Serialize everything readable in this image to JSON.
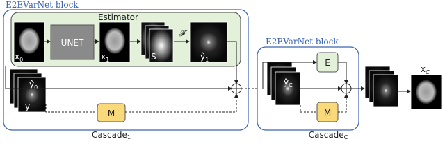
{
  "block1": {
    "title": "E2EVarNet block",
    "estimator_title": "Estimator",
    "unet": "UNET",
    "x0": {
      "base": "x",
      "sub": "0"
    },
    "x1": {
      "base": "x",
      "sub": "1"
    },
    "s": "S",
    "fourier": "𝓕",
    "y1_hat": {
      "base": "ŷ",
      "sub": "1"
    },
    "y0_hat": {
      "base": "ŷ",
      "sub": "0"
    },
    "y": "y",
    "m": "M",
    "cascade": {
      "base": "Cascade",
      "sub": "1"
    }
  },
  "block2": {
    "title": "E2EVarNet block",
    "e": "E",
    "yc_hat": {
      "base": "ŷ",
      "sub": "C"
    },
    "m": "M",
    "cascade": {
      "base": "Cascade",
      "sub": "C"
    }
  },
  "output": {
    "base": "x",
    "sub": "C"
  }
}
